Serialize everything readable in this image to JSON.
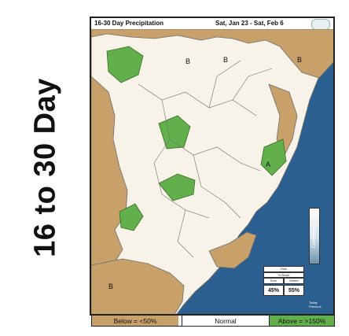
{
  "side_title": "16 to 30 Day",
  "map": {
    "header_left": "16-30 Day Precipitation",
    "header_right": "Sat, Jan 23 - Sat, Feb 6",
    "region_labels": [
      "B",
      "B",
      "B",
      "A",
      "B"
    ],
    "colors": {
      "below": "#c8a06a",
      "above": "#62b04c",
      "normal": "#f7f3e8",
      "ocean": "#2b5f8f",
      "border": "#6f6f6f"
    }
  },
  "legend": {
    "below": "Below = <50%",
    "normal": "Normal",
    "above": "Above = >150%"
  },
  "inset": {
    "title": "Risk",
    "line1": "% Brazil",
    "line2": "Drier",
    "line3": "Wetter",
    "left_pct": "45%",
    "right_pct": "55%",
    "prev_label": "Previous",
    "today_label": "Today"
  },
  "confidence_label": "Confidence"
}
